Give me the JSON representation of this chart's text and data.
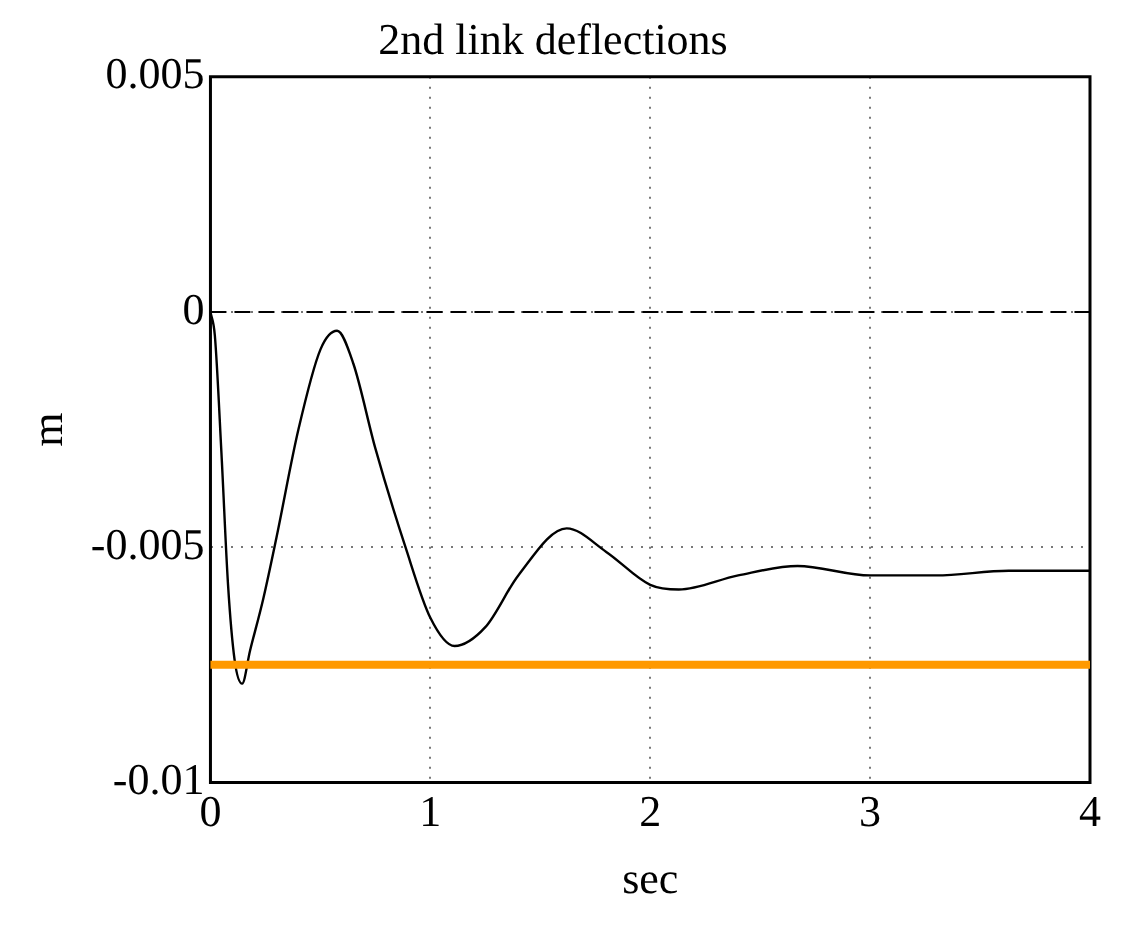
{
  "chart_data": {
    "type": "line",
    "title": "2nd link deflections",
    "xlabel": "sec",
    "ylabel": "m",
    "series": [
      {
        "color": "#000000",
        "x": [
          0,
          0.02,
          0.05,
          0.08,
          0.11,
          0.144,
          0.18,
          0.24,
          0.3,
          0.4,
          0.5,
          0.576,
          0.65,
          0.75,
          0.887,
          1.0,
          1.11,
          1.25,
          1.4,
          1.62,
          1.8,
          2.0,
          2.13,
          2.4,
          2.67,
          3.0,
          3.3,
          3.63,
          4.0
        ],
        "values": [
          0,
          -0.0005,
          -0.003,
          -0.0058,
          -0.0074,
          -0.0079,
          -0.0072,
          -0.0061,
          -0.0048,
          -0.0025,
          -0.0008,
          -0.0004,
          -0.0011,
          -0.0029,
          -0.005,
          -0.0065,
          -0.0071,
          -0.0067,
          -0.0056,
          -0.0046,
          -0.0051,
          -0.0058,
          -0.0059,
          -0.0056,
          -0.0054,
          -0.0056,
          -0.0056,
          -0.0055,
          -0.0055
        ]
      }
    ],
    "xlim": [
      0,
      4
    ],
    "xticks": [
      0,
      1,
      2,
      3,
      4
    ],
    "ylim": [
      -0.01,
      0.005
    ],
    "yticks": [
      -0.01,
      -0.005,
      0,
      0.005
    ],
    "grid": true,
    "marker": "none",
    "line_style": "solid",
    "legend": false,
    "ref_lines": [
      {
        "axis": "y",
        "value": 0,
        "color": "#000000",
        "line_style": "dashed"
      },
      {
        "axis": "y",
        "value": -0.0075,
        "color": "#ff9900",
        "line_style": "solid"
      }
    ]
  }
}
